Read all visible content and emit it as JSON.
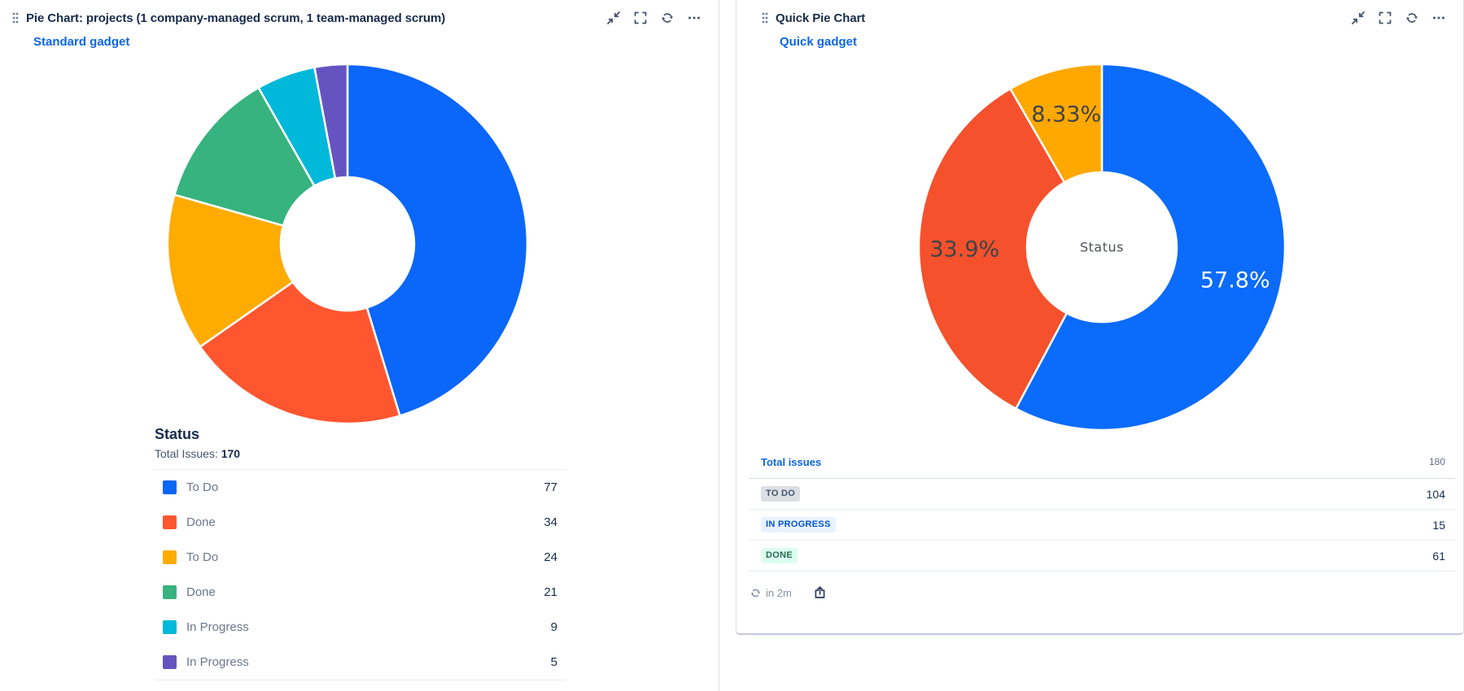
{
  "colors": {
    "link_blue": "#0C66E4",
    "title_text": "#172B4D",
    "icon": "#44546F",
    "muted_text": "#6B778C",
    "divider": "#EBECF0",
    "card_border": "#DCDFE4"
  },
  "left_gadget": {
    "title": "Pie Chart: projects (1 company-managed scrum, 1 team-managed scrum)",
    "gadget_type_link": "Standard gadget",
    "heading": "Status",
    "total_label": "Total Issues:",
    "total_value": "170",
    "chart_data": {
      "type": "pie",
      "title": "Status",
      "total": 170,
      "legend_position": "bottom",
      "series": [
        {
          "name": "To Do",
          "value": 77,
          "color": "#0B66FA"
        },
        {
          "name": "Done",
          "value": 34,
          "color": "#FF5630"
        },
        {
          "name": "To Do",
          "value": 24,
          "color": "#FFAB00"
        },
        {
          "name": "Done",
          "value": 21,
          "color": "#36B37E"
        },
        {
          "name": "In Progress",
          "value": 9,
          "color": "#00B8D9"
        },
        {
          "name": "In Progress",
          "value": 5,
          "color": "#6554C0"
        }
      ]
    }
  },
  "right_gadget": {
    "title": "Quick Pie Chart",
    "gadget_type_link": "Quick gadget",
    "chart_data": {
      "type": "pie",
      "center_label": "Status",
      "total": 180,
      "series": [
        {
          "name": "TO DO",
          "value": 104,
          "pct_label": "57.8%",
          "color": "#0B6BFA",
          "pct_color": "#FFFFFF"
        },
        {
          "name": "DONE",
          "value": 61,
          "pct_label": "33.9%",
          "color": "#F4512C",
          "pct_color": "#3F4348"
        },
        {
          "name": "IN PROGRESS",
          "value": 15,
          "pct_label": "8.33%",
          "color": "#FFA800",
          "pct_color": "#3F4348"
        }
      ]
    },
    "table": {
      "header": {
        "label": "Total issues",
        "value": "180"
      },
      "rows": [
        {
          "label": "TO DO",
          "value": "104",
          "badge_bg": "#DCDFE4",
          "badge_fg": "#44546F"
        },
        {
          "label": "IN PROGRESS",
          "value": "15",
          "badge_bg": "#E9F2FF",
          "badge_fg": "#0055CC"
        },
        {
          "label": "DONE",
          "value": "61",
          "badge_bg": "#DCFFF1",
          "badge_fg": "#216E4E"
        }
      ]
    },
    "footer": {
      "refresh_countdown": "in 2m"
    }
  }
}
